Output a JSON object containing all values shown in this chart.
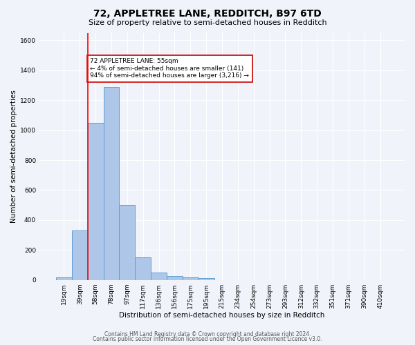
{
  "title": "72, APPLETREE LANE, REDDITCH, B97 6TD",
  "subtitle": "Size of property relative to semi-detached houses in Redditch",
  "xlabel": "Distribution of semi-detached houses by size in Redditch",
  "ylabel_full": "Number of semi-detached properties",
  "categories": [
    "19sqm",
    "39sqm",
    "58sqm",
    "78sqm",
    "97sqm",
    "117sqm",
    "136sqm",
    "156sqm",
    "175sqm",
    "195sqm",
    "215sqm",
    "234sqm",
    "254sqm",
    "273sqm",
    "293sqm",
    "312sqm",
    "332sqm",
    "351sqm",
    "371sqm",
    "390sqm",
    "410sqm"
  ],
  "values": [
    15,
    330,
    1050,
    1290,
    500,
    152,
    50,
    25,
    18,
    12,
    0,
    0,
    0,
    0,
    0,
    0,
    0,
    0,
    0,
    0,
    0
  ],
  "bar_color": "#aec6e8",
  "bar_edge_color": "#5a9fd4",
  "red_line_x": 1.5,
  "annotation_text": "72 APPLETREE LANE: 55sqm\n← 4% of semi-detached houses are smaller (141)\n94% of semi-detached houses are larger (3,216) →",
  "annotation_box_color": "#ffffff",
  "annotation_box_edge": "#cc0000",
  "ylim": [
    0,
    1650
  ],
  "yticks": [
    0,
    200,
    400,
    600,
    800,
    1000,
    1200,
    1400,
    1600
  ],
  "footer1": "Contains HM Land Registry data © Crown copyright and database right 2024.",
  "footer2": "Contains public sector information licensed under the Open Government Licence v3.0.",
  "background_color": "#f0f4fa",
  "grid_color": "#ffffff",
  "title_fontsize": 10,
  "subtitle_fontsize": 8,
  "axis_label_fontsize": 7.5,
  "tick_fontsize": 6.5,
  "annotation_fontsize": 6.5,
  "footer_fontsize": 5.5
}
